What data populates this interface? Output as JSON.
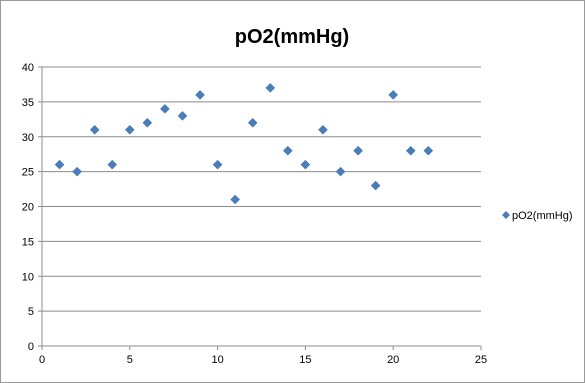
{
  "chart_data": {
    "type": "scatter",
    "title": "pO2(mmHg)",
    "xlabel": "",
    "ylabel": "",
    "xlim": [
      0,
      25
    ],
    "ylim": [
      0,
      40
    ],
    "x_ticks": [
      "0",
      "5",
      "10",
      "15",
      "20",
      "25"
    ],
    "y_ticks": [
      "0",
      "5",
      "10",
      "15",
      "20",
      "25",
      "30",
      "35",
      "40"
    ],
    "grid": "horizontal",
    "legend_position": "right",
    "marker": "diamond",
    "series": [
      {
        "name": "pO2(mmHg)",
        "color": "#4a7ebb",
        "x": [
          1,
          2,
          3,
          4,
          5,
          6,
          7,
          8,
          9,
          10,
          11,
          12,
          13,
          14,
          15,
          16,
          17,
          18,
          19,
          20,
          21,
          22
        ],
        "y": [
          26,
          25,
          31,
          26,
          31,
          32,
          34,
          33,
          36,
          26,
          21,
          32,
          37,
          28,
          26,
          31,
          25,
          28,
          23,
          36,
          28,
          28
        ]
      }
    ]
  }
}
